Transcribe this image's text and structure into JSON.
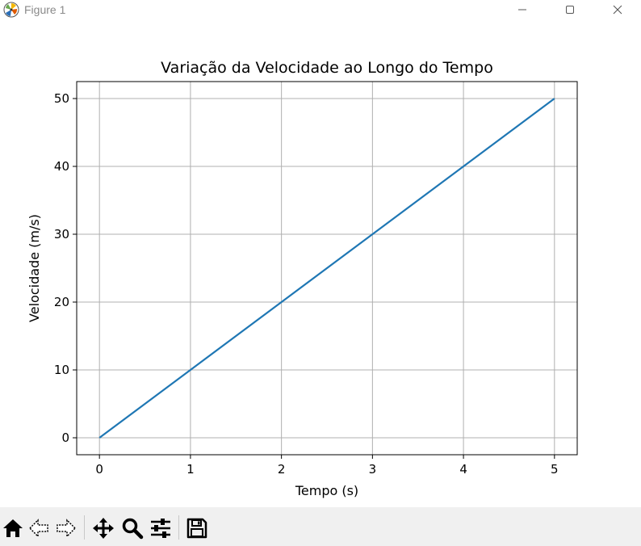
{
  "window": {
    "title": "Figure 1",
    "icon": "matplotlib-logo-icon",
    "controls": [
      "minimize-icon",
      "maximize-icon",
      "close-icon"
    ]
  },
  "toolbar": {
    "buttons": [
      {
        "name": "home-button",
        "icon": "home-icon"
      },
      {
        "name": "back-button",
        "icon": "arrow-left-icon"
      },
      {
        "name": "forward-button",
        "icon": "arrow-right-icon"
      },
      {
        "name": "pan-button",
        "icon": "move-icon"
      },
      {
        "name": "zoom-button",
        "icon": "magnifier-icon"
      },
      {
        "name": "configure-subplots-button",
        "icon": "sliders-icon"
      },
      {
        "name": "save-button",
        "icon": "floppy-disk-icon"
      }
    ]
  },
  "chart_data": {
    "type": "line",
    "title": "Variação da Velocidade ao Longo do Tempo",
    "xlabel": "Tempo (s)",
    "ylabel": "Velocidade (m/s)",
    "x": [
      0,
      1,
      2,
      3,
      4,
      5
    ],
    "series": [
      {
        "values": [
          0,
          10,
          20,
          30,
          40,
          50
        ],
        "color": "#1f77b4"
      }
    ],
    "xlim": [
      -0.25,
      5.25
    ],
    "ylim": [
      -2.5,
      52.5
    ],
    "xticks": [
      0,
      1,
      2,
      3,
      4,
      5
    ],
    "yticks": [
      0,
      10,
      20,
      30,
      40,
      50
    ],
    "grid": true
  }
}
